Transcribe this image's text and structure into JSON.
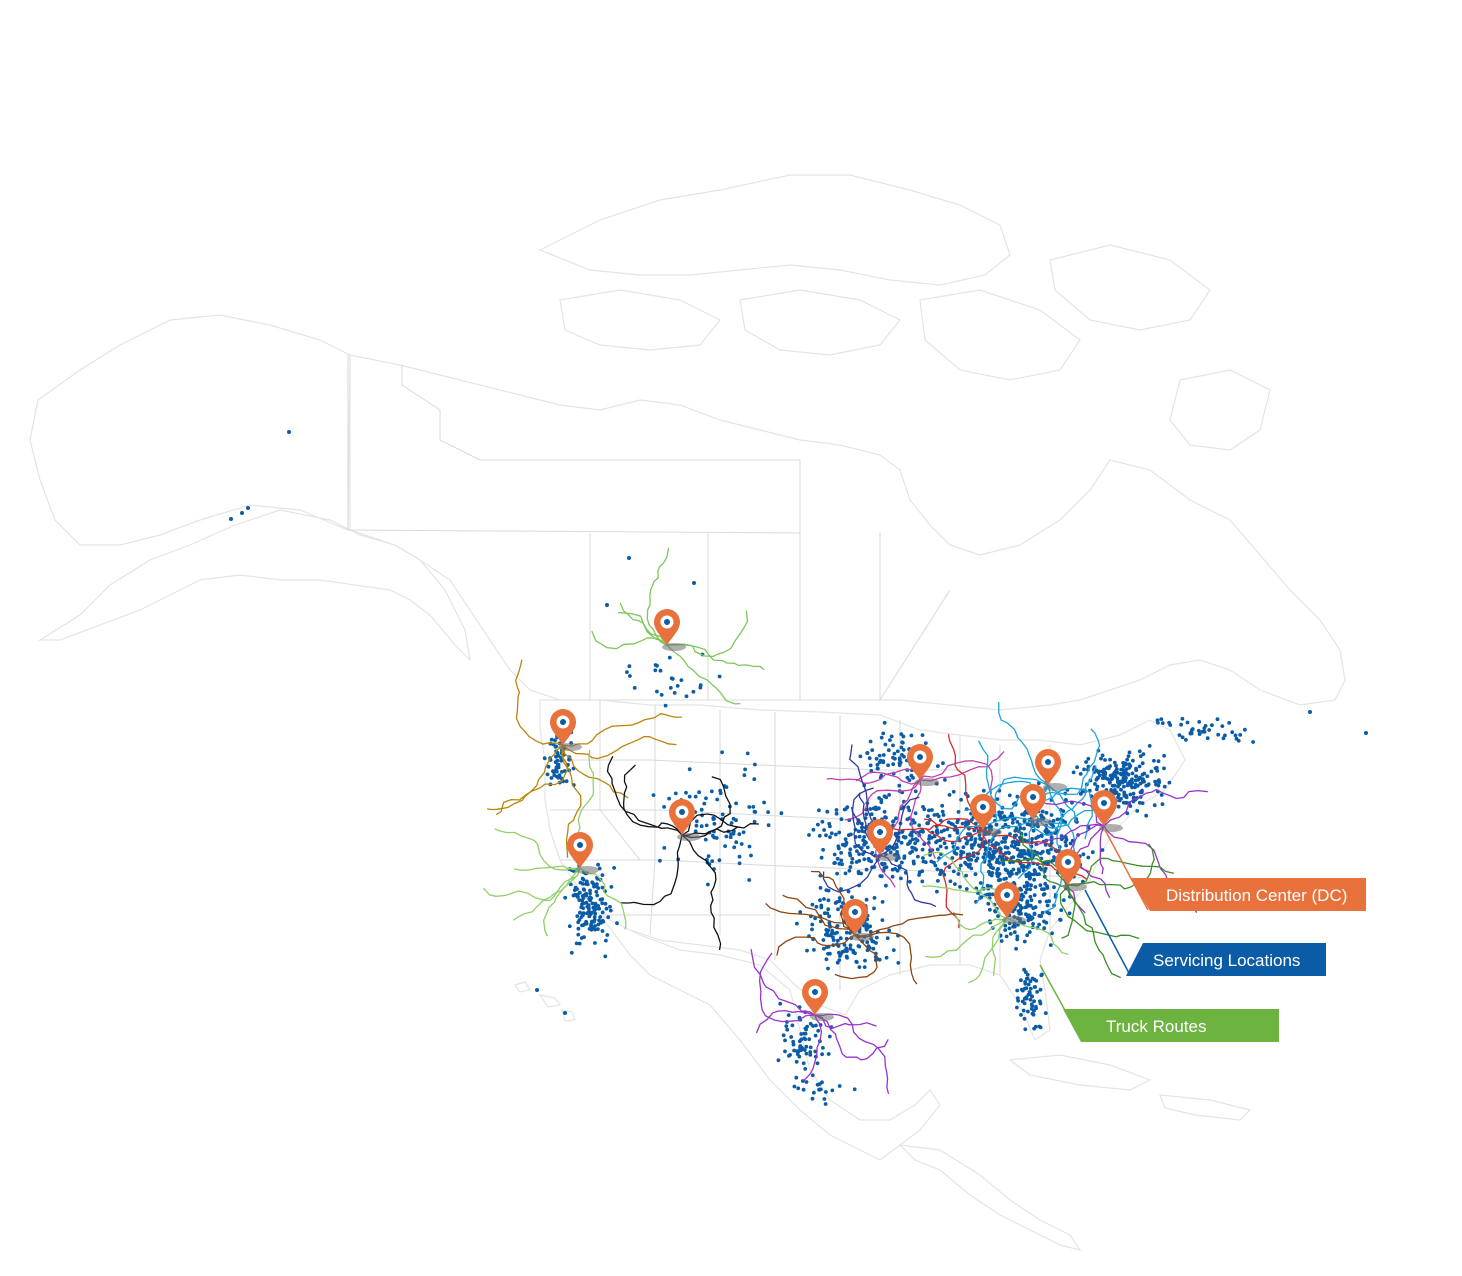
{
  "legend": {
    "items": [
      {
        "label": "Distribution Center (DC)",
        "color": "#E9713C",
        "icon": "map-pin-icon"
      },
      {
        "label": "Servicing Locations",
        "color": "#0B5CA6",
        "icon": "dot-icon"
      },
      {
        "label": "Truck Routes",
        "color": "#6DB33F",
        "icon": "route-line-icon"
      }
    ]
  },
  "colors": {
    "background": "#ffffff",
    "land_outline": "#e2e2e2",
    "border": "#d6d6d6",
    "dc_pin": "#E9713C",
    "location_dot": "#0B5CA6",
    "route_colors": [
      "#7CC85A",
      "#B8860B",
      "#111111",
      "#C040B0",
      "#6A3FA0",
      "#D22B2B",
      "#1BA3DD",
      "#3D8C2A",
      "#8B4513",
      "#9932CC",
      "#2E3A9E",
      "#8FD16A"
    ]
  }
}
